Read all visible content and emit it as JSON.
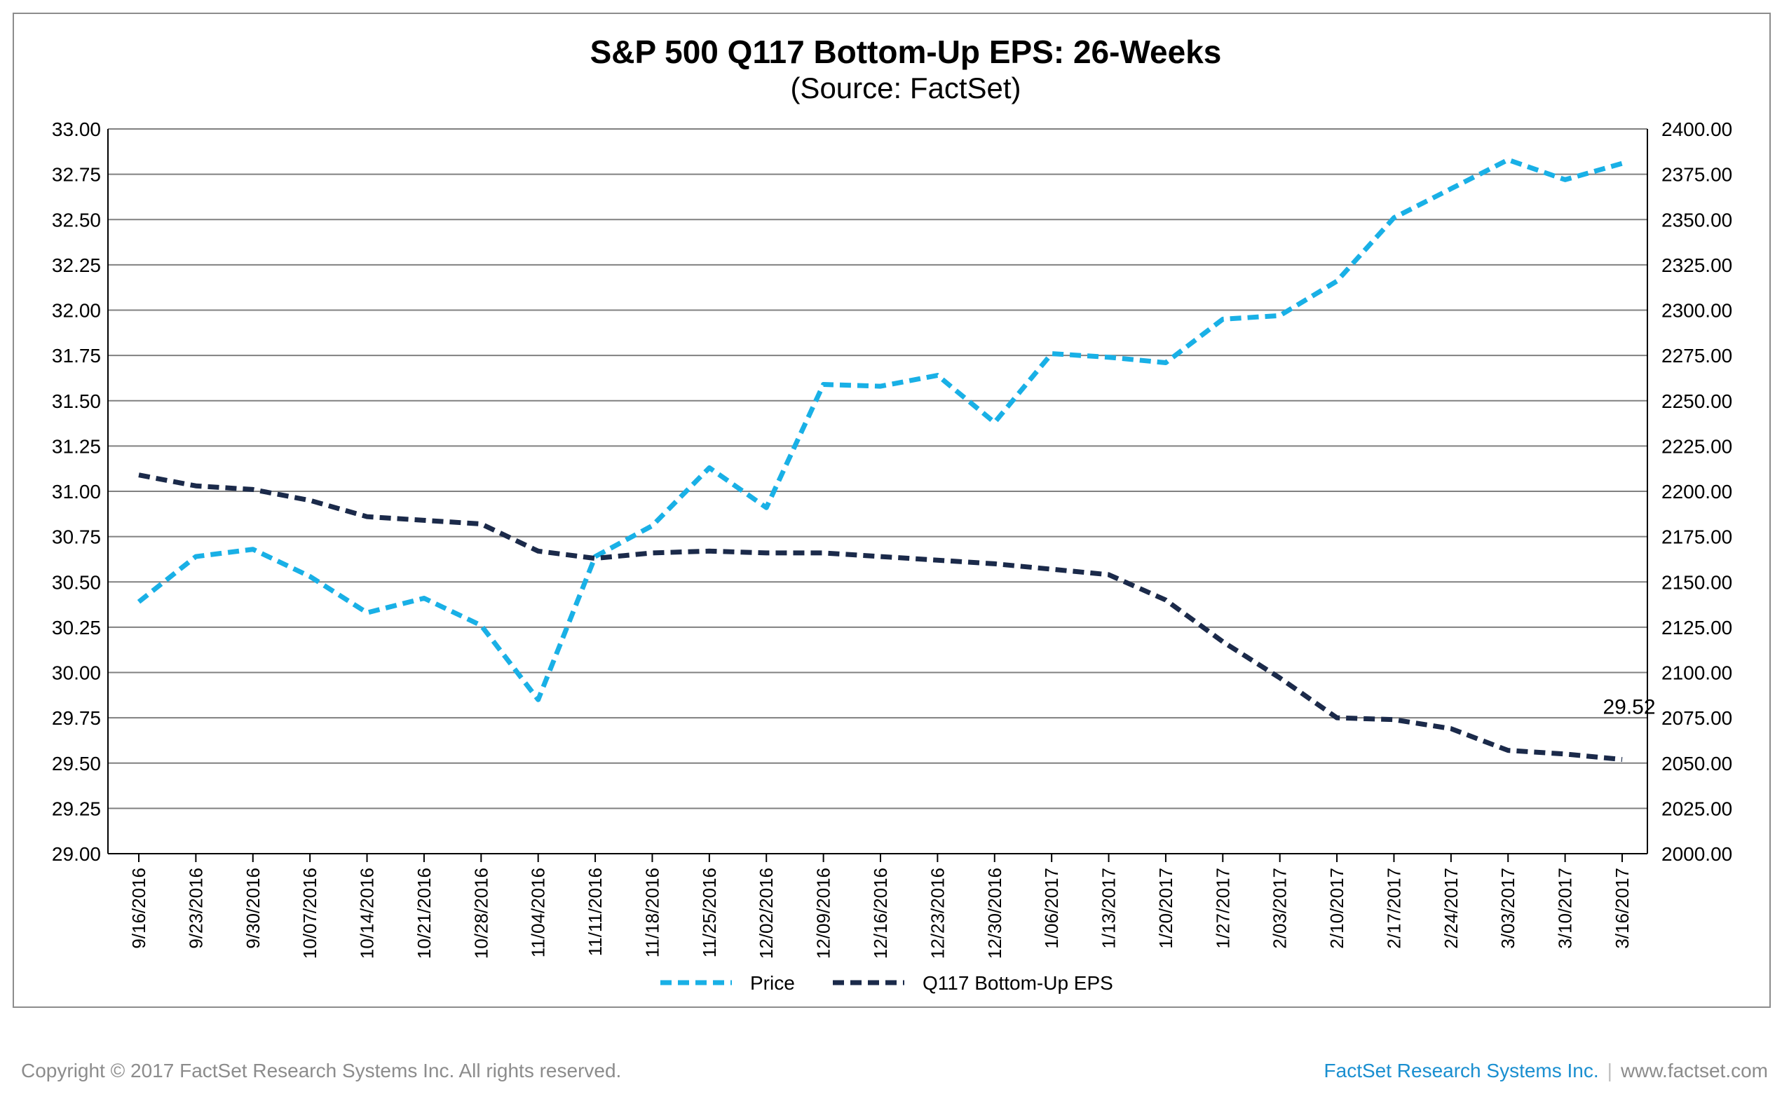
{
  "footer": {
    "copyright": "Copyright © 2017 FactSet Research Systems Inc. All rights reserved.",
    "company": "FactSet Research Systems Inc.",
    "separator": "|",
    "website": "www.factset.com"
  },
  "colors": {
    "price": "#19b0e6",
    "eps": "#1b2a4a",
    "grid": "#808080",
    "footer_brand": "#1a8fd0"
  },
  "chart_data": {
    "type": "line",
    "title": "S&P 500 Q117 Bottom-Up EPS: 26-Weeks",
    "subtitle": "(Source: FactSet)",
    "categories": [
      "9/16/2016",
      "9/23/2016",
      "9/30/2016",
      "10/07/2016",
      "10/14/2016",
      "10/21/2016",
      "10/28/2016",
      "11/04/2016",
      "11/11/2016",
      "11/18/2016",
      "11/25/2016",
      "12/02/2016",
      "12/09/2016",
      "12/16/2016",
      "12/23/2016",
      "12/30/2016",
      "1/06/2017",
      "1/13/2017",
      "1/20/2017",
      "1/27/2017",
      "2/03/2017",
      "2/10/2017",
      "2/17/2017",
      "2/24/2017",
      "3/03/2017",
      "3/10/2017",
      "3/16/2017"
    ],
    "y_left": {
      "ylim": [
        29.0,
        33.0
      ],
      "ticks": [
        "29.00",
        "29.25",
        "29.50",
        "29.75",
        "30.00",
        "30.25",
        "30.50",
        "30.75",
        "31.00",
        "31.25",
        "31.50",
        "31.75",
        "32.00",
        "32.25",
        "32.50",
        "32.75",
        "33.00"
      ]
    },
    "y_right": {
      "ylim": [
        2000,
        2400
      ],
      "ticks": [
        "2000.00",
        "2025.00",
        "2050.00",
        "2075.00",
        "2100.00",
        "2125.00",
        "2150.00",
        "2175.00",
        "2200.00",
        "2225.00",
        "2250.00",
        "2275.00",
        "2300.00",
        "2325.00",
        "2350.00",
        "2375.00",
        "2400.00"
      ]
    },
    "grid": true,
    "legend_position": "bottom",
    "series": [
      {
        "name": "Price",
        "axis": "right",
        "style": "dashed",
        "values": [
          2139,
          2164,
          2168,
          2153,
          2133,
          2141,
          2126,
          2085,
          2164,
          2181,
          2213,
          2191,
          2259,
          2258,
          2264,
          2238,
          2276,
          2274,
          2271,
          2295,
          2297,
          2316,
          2351,
          2367,
          2383,
          2372,
          2381
        ]
      },
      {
        "name": "Q117 Bottom-Up EPS",
        "axis": "left",
        "style": "dashed",
        "values": [
          31.09,
          31.03,
          31.01,
          30.95,
          30.86,
          30.84,
          30.82,
          30.67,
          30.63,
          30.66,
          30.67,
          30.66,
          30.66,
          30.64,
          30.62,
          30.6,
          30.57,
          30.54,
          30.4,
          30.17,
          29.97,
          29.75,
          29.74,
          29.69,
          29.57,
          29.55,
          29.52
        ]
      }
    ],
    "annotations": [
      {
        "text": "29.52",
        "series": "Q117 Bottom-Up EPS",
        "category": "3/16/2017"
      }
    ]
  }
}
